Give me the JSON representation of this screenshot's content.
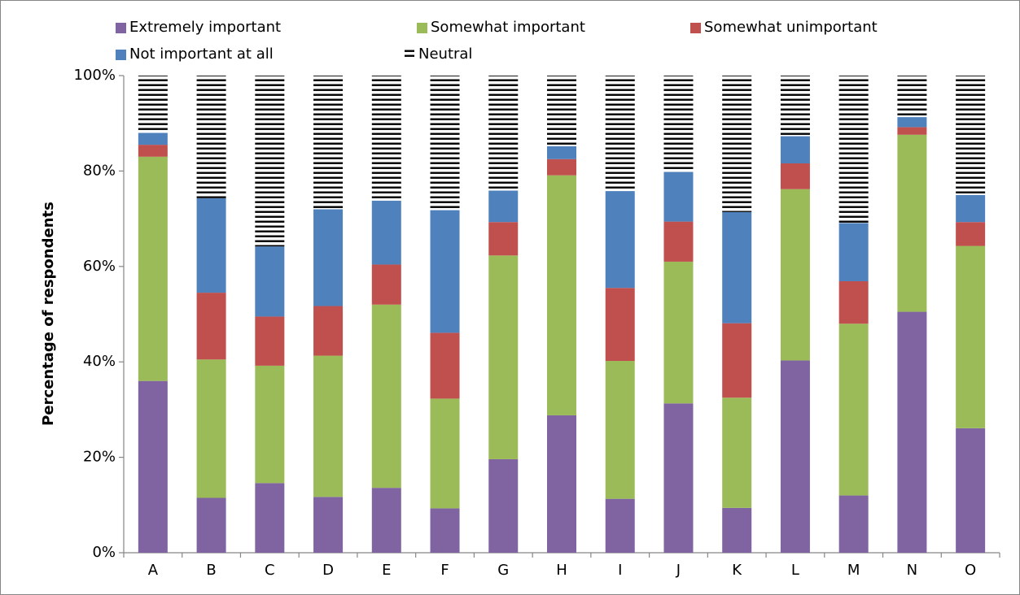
{
  "chart_data": {
    "type": "stacked_bar",
    "y_label": "Percentage of respondents",
    "categories": [
      "A",
      "B",
      "C",
      "D",
      "E",
      "F",
      "G",
      "H",
      "I",
      "J",
      "K",
      "L",
      "M",
      "N",
      "O"
    ],
    "series": [
      {
        "name": "Extremely important",
        "color": "#8064a2",
        "values": [
          36,
          11.5,
          14.6,
          11.7,
          13.6,
          9.3,
          19.6,
          28.8,
          11.3,
          31.3,
          9.4,
          40.3,
          12,
          50.5,
          26.1
        ]
      },
      {
        "name": "Somewhat important",
        "color": "#9bbb59",
        "values": [
          47,
          29,
          24.6,
          29.6,
          38.4,
          23,
          42.7,
          50.3,
          28.9,
          29.7,
          23.1,
          35.9,
          36,
          37.1,
          38.2
        ]
      },
      {
        "name": "Somewhat unimportant",
        "color": "#c0504d",
        "values": [
          2.5,
          14,
          10.3,
          10.4,
          8.4,
          13.8,
          7,
          3.4,
          15.3,
          8.4,
          15.6,
          5.4,
          8.9,
          1.6,
          5
        ]
      },
      {
        "name": "Not important at all",
        "color": "#4f81bd",
        "values": [
          2.5,
          19.8,
          14.7,
          20.3,
          13.4,
          25.7,
          6.6,
          2.7,
          20.3,
          10.4,
          23.3,
          5.7,
          12.2,
          2.1,
          5.7
        ]
      },
      {
        "name": "Neutral",
        "color": "#000000",
        "pattern": "horizontal-lines",
        "values": [
          12,
          25.7,
          35.8,
          28,
          26.2,
          28.2,
          24.1,
          14.8,
          24.2,
          20.2,
          28.6,
          12.7,
          30.9,
          8.7,
          25
        ]
      }
    ],
    "ylim": [
      0,
      100
    ],
    "yticks": [
      {
        "value": 0,
        "label": "0%"
      },
      {
        "value": 20,
        "label": "20%"
      },
      {
        "value": 40,
        "label": "40%"
      },
      {
        "value": 60,
        "label": "60%"
      },
      {
        "value": 80,
        "label": "80%"
      },
      {
        "value": 100,
        "label": "100%"
      }
    ],
    "grid": false,
    "legend": "top"
  }
}
